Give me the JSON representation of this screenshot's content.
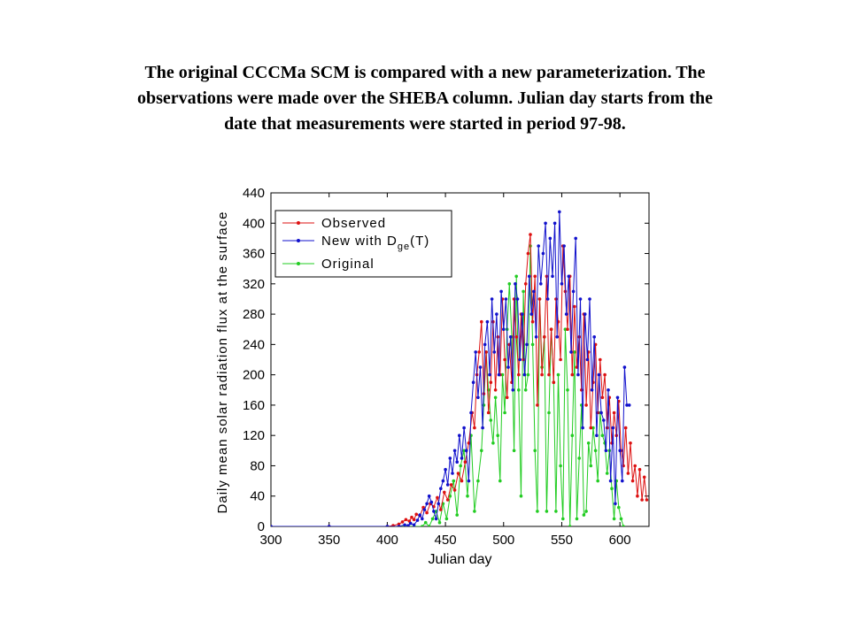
{
  "caption": {
    "lines": [
      "The original CCCMa SCM is compared with a new parameterization.   The",
      "observations were made over the SHEBA column. Julian day starts from the",
      "date that measurements were started in period 97-98."
    ]
  },
  "chart_data": {
    "type": "line",
    "xlabel": "Julian day",
    "ylabel": "Daily mean solar radiation flux at the surface",
    "xlim": [
      300,
      625
    ],
    "ylim": [
      0,
      440
    ],
    "xticks": [
      300,
      350,
      400,
      450,
      500,
      550,
      600
    ],
    "yticks": [
      0,
      40,
      80,
      120,
      160,
      200,
      240,
      280,
      320,
      360,
      400,
      440
    ],
    "grid": false,
    "legend": "top-left",
    "series": [
      {
        "name": "Observed",
        "color": "#dd1111",
        "points": [
          [
            300,
            0
          ],
          [
            350,
            0
          ],
          [
            400,
            0
          ],
          [
            405,
            1
          ],
          [
            410,
            3
          ],
          [
            413,
            6
          ],
          [
            416,
            9
          ],
          [
            419,
            7
          ],
          [
            421,
            12
          ],
          [
            423,
            9
          ],
          [
            425,
            16
          ],
          [
            428,
            14
          ],
          [
            431,
            25
          ],
          [
            434,
            18
          ],
          [
            437,
            30
          ],
          [
            440,
            26
          ],
          [
            443,
            38
          ],
          [
            446,
            22
          ],
          [
            449,
            45
          ],
          [
            452,
            35
          ],
          [
            455,
            55
          ],
          [
            458,
            48
          ],
          [
            461,
            70
          ],
          [
            464,
            60
          ],
          [
            467,
            85
          ],
          [
            470,
            110
          ],
          [
            473,
            150
          ],
          [
            475,
            130
          ],
          [
            477,
            200
          ],
          [
            479,
            230
          ],
          [
            481,
            270
          ],
          [
            483,
            175
          ],
          [
            485,
            230
          ],
          [
            487,
            150
          ],
          [
            489,
            190
          ],
          [
            491,
            270
          ],
          [
            493,
            180
          ],
          [
            495,
            250
          ],
          [
            497,
            200
          ],
          [
            499,
            300
          ],
          [
            501,
            220
          ],
          [
            503,
            170
          ],
          [
            505,
            240
          ],
          [
            507,
            190
          ],
          [
            509,
            300
          ],
          [
            511,
            250
          ],
          [
            513,
            200
          ],
          [
            515,
            280
          ],
          [
            517,
            220
          ],
          [
            519,
            320
          ],
          [
            521,
            360
          ],
          [
            523,
            385
          ],
          [
            525,
            270
          ],
          [
            527,
            330
          ],
          [
            529,
            160
          ],
          [
            531,
            300
          ],
          [
            533,
            200
          ],
          [
            535,
            250
          ],
          [
            537,
            330
          ],
          [
            539,
            200
          ],
          [
            541,
            260
          ],
          [
            543,
            190
          ],
          [
            545,
            300
          ],
          [
            547,
            270
          ],
          [
            549,
            220
          ],
          [
            551,
            370
          ],
          [
            553,
            310
          ],
          [
            555,
            260
          ],
          [
            557,
            330
          ],
          [
            559,
            200
          ],
          [
            561,
            290
          ],
          [
            563,
            210
          ],
          [
            565,
            250
          ],
          [
            567,
            180
          ],
          [
            569,
            280
          ],
          [
            571,
            160
          ],
          [
            573,
            230
          ],
          [
            575,
            130
          ],
          [
            577,
            190
          ],
          [
            579,
            240
          ],
          [
            581,
            150
          ],
          [
            583,
            220
          ],
          [
            585,
            170
          ],
          [
            587,
            200
          ],
          [
            589,
            130
          ],
          [
            591,
            170
          ],
          [
            593,
            110
          ],
          [
            595,
            150
          ],
          [
            597,
            120
          ],
          [
            599,
            165
          ],
          [
            601,
            100
          ],
          [
            603,
            80
          ],
          [
            605,
            130
          ],
          [
            607,
            70
          ],
          [
            609,
            110
          ],
          [
            611,
            60
          ],
          [
            613,
            80
          ],
          [
            615,
            40
          ],
          [
            617,
            75
          ],
          [
            619,
            35
          ],
          [
            621,
            65
          ],
          [
            623,
            35
          ]
        ]
      },
      {
        "name": "New with D",
        "legend_sub": "ge",
        "legend_suffix": "(T)",
        "color": "#1111cc",
        "points": [
          [
            300,
            0
          ],
          [
            350,
            0
          ],
          [
            400,
            0
          ],
          [
            410,
            0
          ],
          [
            415,
            2
          ],
          [
            418,
            1
          ],
          [
            420,
            4
          ],
          [
            423,
            2
          ],
          [
            426,
            8
          ],
          [
            428,
            15
          ],
          [
            430,
            10
          ],
          [
            432,
            22
          ],
          [
            434,
            30
          ],
          [
            436,
            40
          ],
          [
            438,
            32
          ],
          [
            440,
            20
          ],
          [
            442,
            10
          ],
          [
            444,
            30
          ],
          [
            446,
            50
          ],
          [
            448,
            60
          ],
          [
            450,
            75
          ],
          [
            452,
            55
          ],
          [
            454,
            90
          ],
          [
            456,
            70
          ],
          [
            458,
            100
          ],
          [
            460,
            85
          ],
          [
            462,
            120
          ],
          [
            464,
            90
          ],
          [
            466,
            130
          ],
          [
            468,
            100
          ],
          [
            470,
            60
          ],
          [
            472,
            150
          ],
          [
            474,
            190
          ],
          [
            476,
            230
          ],
          [
            478,
            170
          ],
          [
            480,
            210
          ],
          [
            482,
            130
          ],
          [
            484,
            240
          ],
          [
            486,
            270
          ],
          [
            488,
            200
          ],
          [
            490,
            300
          ],
          [
            492,
            230
          ],
          [
            494,
            280
          ],
          [
            496,
            200
          ],
          [
            498,
            310
          ],
          [
            500,
            260
          ],
          [
            502,
            300
          ],
          [
            504,
            210
          ],
          [
            506,
            250
          ],
          [
            508,
            180
          ],
          [
            510,
            320
          ],
          [
            512,
            300
          ],
          [
            514,
            220
          ],
          [
            516,
            280
          ],
          [
            518,
            200
          ],
          [
            520,
            240
          ],
          [
            522,
            330
          ],
          [
            524,
            280
          ],
          [
            526,
            310
          ],
          [
            528,
            250
          ],
          [
            530,
            370
          ],
          [
            532,
            320
          ],
          [
            534,
            360
          ],
          [
            536,
            400
          ],
          [
            538,
            300
          ],
          [
            540,
            380
          ],
          [
            542,
            330
          ],
          [
            544,
            400
          ],
          [
            546,
            250
          ],
          [
            548,
            415
          ],
          [
            550,
            320
          ],
          [
            552,
            370
          ],
          [
            554,
            280
          ],
          [
            556,
            330
          ],
          [
            558,
            230
          ],
          [
            560,
            310
          ],
          [
            562,
            380
          ],
          [
            564,
            200
          ],
          [
            566,
            300
          ],
          [
            568,
            130
          ],
          [
            570,
            280
          ],
          [
            572,
            220
          ],
          [
            574,
            300
          ],
          [
            576,
            180
          ],
          [
            578,
            250
          ],
          [
            580,
            120
          ],
          [
            582,
            200
          ],
          [
            584,
            150
          ],
          [
            586,
            140
          ],
          [
            588,
            100
          ],
          [
            590,
            180
          ],
          [
            592,
            60
          ],
          [
            594,
            130
          ],
          [
            596,
            30
          ],
          [
            598,
            170
          ],
          [
            600,
            100
          ],
          [
            602,
            60
          ],
          [
            604,
            210
          ],
          [
            606,
            160
          ],
          [
            608,
            160
          ]
        ]
      },
      {
        "name": "Original",
        "color": "#22cc22",
        "points": [
          [
            300,
            0
          ],
          [
            400,
            0
          ],
          [
            430,
            0
          ],
          [
            433,
            5
          ],
          [
            436,
            0
          ],
          [
            439,
            10
          ],
          [
            442,
            20
          ],
          [
            445,
            5
          ],
          [
            448,
            30
          ],
          [
            451,
            10
          ],
          [
            454,
            40
          ],
          [
            457,
            60
          ],
          [
            460,
            15
          ],
          [
            463,
            80
          ],
          [
            466,
            100
          ],
          [
            469,
            40
          ],
          [
            472,
            120
          ],
          [
            475,
            20
          ],
          [
            478,
            60
          ],
          [
            481,
            100
          ],
          [
            483,
            160
          ],
          [
            485,
            230
          ],
          [
            487,
            180
          ],
          [
            489,
            140
          ],
          [
            491,
            110
          ],
          [
            493,
            170
          ],
          [
            495,
            120
          ],
          [
            497,
            60
          ],
          [
            499,
            200
          ],
          [
            501,
            150
          ],
          [
            503,
            260
          ],
          [
            505,
            320
          ],
          [
            507,
            250
          ],
          [
            509,
            100
          ],
          [
            511,
            330
          ],
          [
            513,
            180
          ],
          [
            515,
            40
          ],
          [
            517,
            310
          ],
          [
            519,
            180
          ],
          [
            521,
            200
          ],
          [
            523,
            370
          ],
          [
            525,
            240
          ],
          [
            527,
            100
          ],
          [
            529,
            20
          ],
          [
            531,
            300
          ],
          [
            533,
            210
          ],
          [
            535,
            250
          ],
          [
            537,
            20
          ],
          [
            539,
            150
          ],
          [
            541,
            260
          ],
          [
            543,
            190
          ],
          [
            545,
            20
          ],
          [
            547,
            200
          ],
          [
            549,
            80
          ],
          [
            551,
            10
          ],
          [
            553,
            260
          ],
          [
            555,
            180
          ],
          [
            557,
            0
          ],
          [
            559,
            120
          ],
          [
            561,
            230
          ],
          [
            563,
            10
          ],
          [
            565,
            90
          ],
          [
            567,
            160
          ],
          [
            569,
            15
          ],
          [
            571,
            20
          ],
          [
            573,
            110
          ],
          [
            575,
            80
          ],
          [
            577,
            130
          ],
          [
            579,
            100
          ],
          [
            581,
            60
          ],
          [
            583,
            150
          ],
          [
            585,
            120
          ],
          [
            587,
            110
          ],
          [
            589,
            70
          ],
          [
            591,
            100
          ],
          [
            593,
            50
          ],
          [
            595,
            10
          ],
          [
            597,
            60
          ],
          [
            599,
            25
          ],
          [
            601,
            10
          ],
          [
            603,
            0
          ]
        ]
      }
    ]
  }
}
